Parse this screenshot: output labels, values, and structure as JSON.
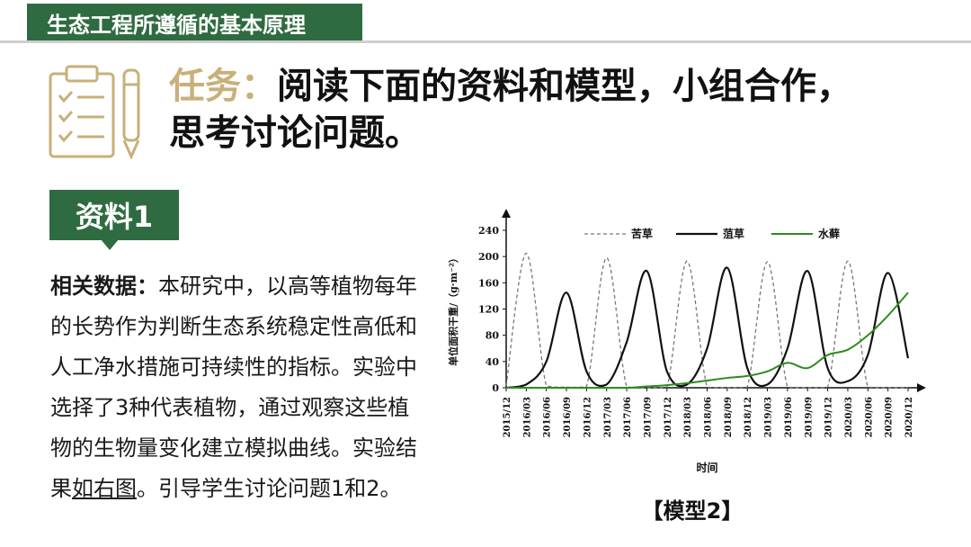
{
  "header": {
    "section_title": "生态工程所遵循的基本原理"
  },
  "task": {
    "prefix": "任务：",
    "line1": "阅读下面的资料和模型，小组合作，",
    "line2": "思考讨论问题。",
    "icon": "checklist-pen-icon"
  },
  "material": {
    "badge": "资料1",
    "lead": "相关数据：",
    "text_before_link": "本研究中，以高等植物每年的长势作为判断生态系统稳定性高低和人工净水措施可持续性的指标。实验中选择了3种代表植物，通过观察这些植物的生物量变化建立模拟曲线。实验结果",
    "link_text": "如右图",
    "text_after_link": "。引导学生讨论问题1和2。"
  },
  "model_caption": "【模型2】",
  "colors": {
    "brand_green": "#2f6b41",
    "task_prefix_gold": "#c8b07a",
    "series_kucao": "#777777",
    "series_dicao": "#111111",
    "series_shuizao": "#2e8b1e"
  },
  "chart_data": {
    "type": "line",
    "ylabel": "单位面积干重/（g·m⁻²）",
    "xlabel": "时间",
    "ylim": [
      0,
      240
    ],
    "yticks": [
      0,
      40,
      80,
      120,
      160,
      200,
      240
    ],
    "categories": [
      "2015/12",
      "2016/03",
      "2016/06",
      "2016/09",
      "2016/12",
      "2017/03",
      "2017/06",
      "2017/09",
      "2017/12",
      "2018/03",
      "2018/06",
      "2018/09",
      "2018/12",
      "2019/03",
      "2019/06",
      "2019/09",
      "2019/12",
      "2020/03",
      "2020/06",
      "2020/09",
      "2020/12"
    ],
    "legend_position": "top",
    "series": [
      {
        "name": "苦草",
        "style": "dashed",
        "values": [
          3,
          205,
          3,
          1,
          2,
          198,
          1,
          0,
          1,
          193,
          1,
          0,
          1,
          192,
          1,
          0,
          1,
          193,
          1,
          0,
          0
        ]
      },
      {
        "name": "菹草",
        "style": "solid",
        "values": [
          0,
          5,
          40,
          145,
          25,
          5,
          70,
          178,
          25,
          5,
          60,
          183,
          30,
          5,
          60,
          178,
          30,
          10,
          50,
          175,
          45
        ]
      },
      {
        "name": "水藓",
        "style": "solid",
        "values": [
          0,
          0,
          0,
          0,
          0,
          0,
          0,
          2,
          4,
          7,
          11,
          15,
          18,
          25,
          38,
          30,
          50,
          58,
          80,
          110,
          145
        ]
      }
    ]
  }
}
